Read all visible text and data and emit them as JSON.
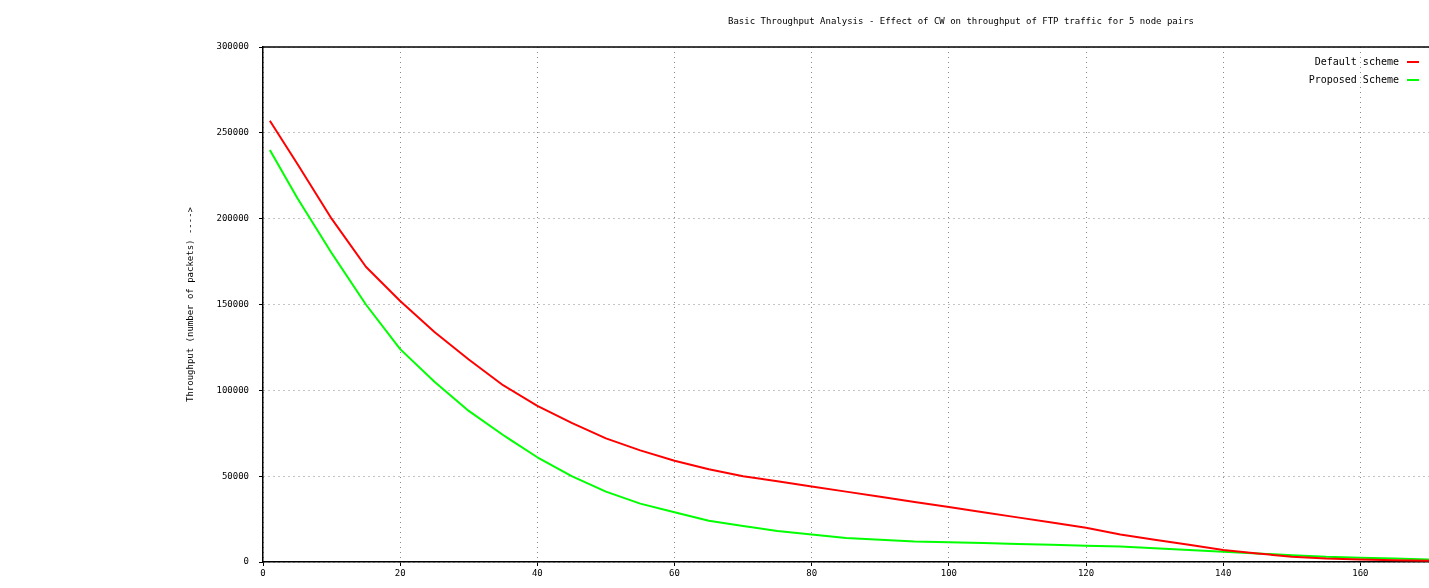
{
  "chart_data": {
    "type": "line",
    "title": "Basic Throughput Analysis - Effect of CW on throughput of FTP traffic for 5 node pairs",
    "ylabel": "Throughput (number of packets) ---->",
    "x": [
      1,
      5,
      10,
      15,
      20,
      25,
      30,
      35,
      40,
      45,
      50,
      55,
      60,
      65,
      70,
      75,
      80,
      85,
      90,
      95,
      100,
      105,
      110,
      115,
      120,
      125,
      130,
      135,
      140,
      145,
      150,
      155,
      160,
      165,
      170
    ],
    "series": [
      {
        "name": "Default scheme",
        "color": "#ff0000",
        "values": [
          257000,
          232000,
          200000,
          172000,
          152000,
          134000,
          118000,
          103000,
          91000,
          81000,
          72000,
          65000,
          59000,
          54000,
          50000,
          47000,
          44000,
          41000,
          38000,
          35000,
          32000,
          29000,
          26000,
          23000,
          20000,
          16000,
          13000,
          10000,
          7000,
          5000,
          3000,
          2000,
          1500,
          1000,
          800
        ]
      },
      {
        "name": "Proposed Scheme",
        "color": "#00ff00",
        "values": [
          240000,
          212000,
          180000,
          150000,
          124000,
          105000,
          88000,
          74000,
          61000,
          50000,
          41000,
          34000,
          29000,
          24000,
          21000,
          18000,
          16000,
          14000,
          13000,
          12000,
          11500,
          11000,
          10500,
          10000,
          9500,
          9000,
          8000,
          7000,
          6000,
          5000,
          4000,
          3000,
          2500,
          2000,
          1500
        ]
      }
    ],
    "xlim": [
      0,
      170
    ],
    "xticks": [
      0,
      20,
      40,
      60,
      80,
      100,
      120,
      140,
      160
    ],
    "ylim": [
      0,
      300000
    ],
    "yticks": [
      0,
      50000,
      100000,
      150000,
      200000,
      250000,
      300000
    ],
    "grid": true,
    "legend": "top right",
    "marker": "none",
    "line_style": "solid"
  }
}
